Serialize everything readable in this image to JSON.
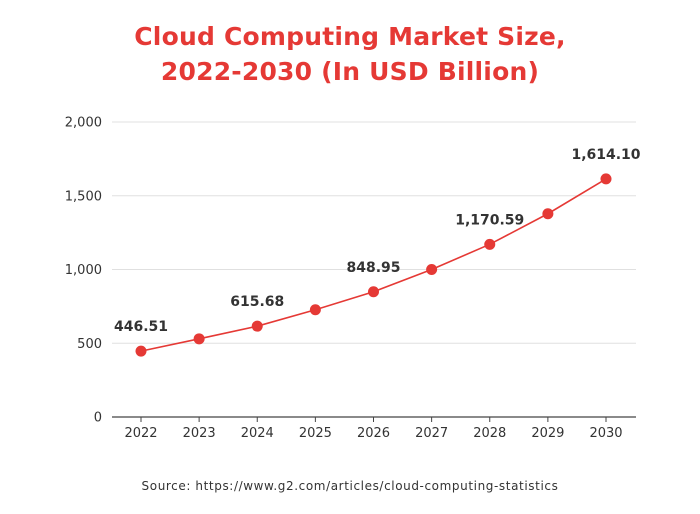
{
  "chart_data": {
    "type": "line",
    "title_line1": "Cloud Computing Market Size,",
    "title_line2": "2022-2030 (In USD Billion)",
    "x": [
      "2022",
      "2023",
      "2024",
      "2025",
      "2026",
      "2027",
      "2028",
      "2029",
      "2030"
    ],
    "values": [
      446.51,
      530,
      615.68,
      727,
      848.95,
      1000,
      1170.59,
      1378,
      1614.1
    ],
    "data_labels": [
      {
        "index": 0,
        "text": "446.51"
      },
      {
        "index": 2,
        "text": "615.68"
      },
      {
        "index": 4,
        "text": "848.95"
      },
      {
        "index": 6,
        "text": "1,170.59"
      },
      {
        "index": 8,
        "text": "1,614.10"
      }
    ],
    "y_ticks": [
      {
        "value": 0,
        "label": "0"
      },
      {
        "value": 500,
        "label": "500"
      },
      {
        "value": 1000,
        "label": "1,000"
      },
      {
        "value": 1500,
        "label": "1,500"
      },
      {
        "value": 2000,
        "label": "2,000"
      }
    ],
    "ylim": [
      0,
      2000
    ],
    "grid": true,
    "line_color": "#e53935",
    "grid_color": "#e0e0e0",
    "source": "Source: https://www.g2.com/articles/cloud-computing-statistics"
  }
}
